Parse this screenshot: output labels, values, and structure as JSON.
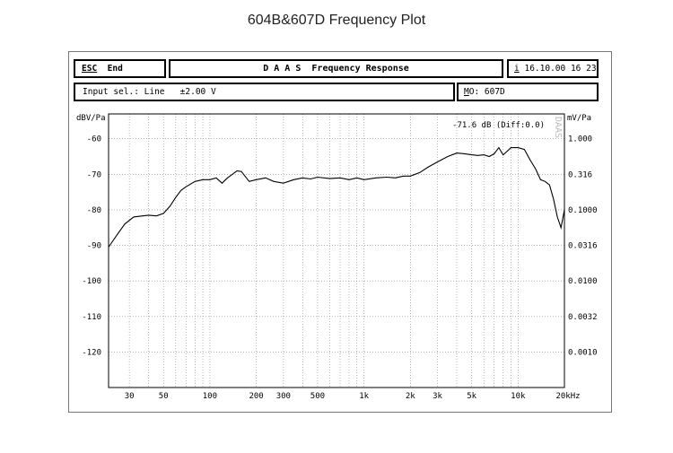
{
  "page_title": "604B&607D Frequency Plot",
  "header": {
    "esc_key": "ESC",
    "esc_label": "End",
    "app_title": "D A A S  Frequency Response",
    "info_key": "i",
    "datetime": "16.10.00 16 23",
    "input_select": "Input sel.: Line   ±2.00 V",
    "mo_key": "M",
    "mo_value": "O: 607D"
  },
  "chart_data": {
    "type": "line",
    "ylabel_left": "dBV/Pa",
    "ylabel_right": "mV/Pa",
    "x_scale": "log",
    "xlim": [
      22,
      20000
    ],
    "ylim": [
      -130,
      -53
    ],
    "grid": true,
    "x_ticks": [
      30,
      50,
      100,
      200,
      300,
      500,
      1000,
      2000,
      3000,
      5000,
      10000,
      20000
    ],
    "x_tick_labels": [
      "30",
      "50",
      "100",
      "200",
      "300",
      "500",
      "1k",
      "2k",
      "3k",
      "5k",
      "10k",
      "20kHz"
    ],
    "y_ticks": [
      -60,
      -70,
      -80,
      -90,
      -100,
      -110,
      -120
    ],
    "y_tick_labels": [
      "-60",
      "-70",
      "-80",
      "-90",
      "-100",
      "-110",
      "-120"
    ],
    "y_right_labels": [
      "1.000",
      "0.316",
      "0.1000",
      "0.0316",
      "0.0100",
      "0.0032",
      "0.0010"
    ],
    "annotation": "-71.6 dB (Diff:0.0)",
    "side_label": "DAAS",
    "series": [
      {
        "x": [
          22,
          25,
          28,
          32,
          35,
          40,
          45,
          50,
          55,
          60,
          65,
          70,
          80,
          90,
          100,
          110,
          120,
          130,
          140,
          150,
          160,
          180,
          200,
          230,
          260,
          300,
          350,
          400,
          450,
          500,
          600,
          700,
          800,
          900,
          1000,
          1200,
          1400,
          1600,
          1800,
          2000,
          2300,
          2600,
          3000,
          3500,
          4000,
          4500,
          5000,
          5500,
          6000,
          6500,
          7000,
          7500,
          8000,
          8500,
          9000,
          10000,
          11000,
          12000,
          13000,
          14000,
          15000,
          16000,
          17000,
          18000,
          19000,
          20000
        ],
        "y": [
          -90.5,
          -87,
          -84,
          -82,
          -81.8,
          -81.5,
          -81.7,
          -81,
          -79,
          -76.5,
          -74.5,
          -73.5,
          -72,
          -71.5,
          -71.5,
          -71,
          -72.5,
          -71,
          -70,
          -69,
          -69.2,
          -72,
          -71.5,
          -71,
          -72,
          -72.5,
          -71.5,
          -71,
          -71.3,
          -70.8,
          -71.2,
          -71,
          -71.5,
          -71,
          -71.5,
          -71,
          -70.8,
          -71,
          -70.5,
          -70.5,
          -69.5,
          -68,
          -66.5,
          -65,
          -64,
          -64.2,
          -64.5,
          -64.7,
          -64.5,
          -65,
          -64.2,
          -62.5,
          -64.5,
          -63.5,
          -62.5,
          -62.5,
          -63,
          -66,
          -68.5,
          -71.5,
          -72,
          -73,
          -77,
          -82,
          -85,
          -80
        ]
      }
    ]
  }
}
